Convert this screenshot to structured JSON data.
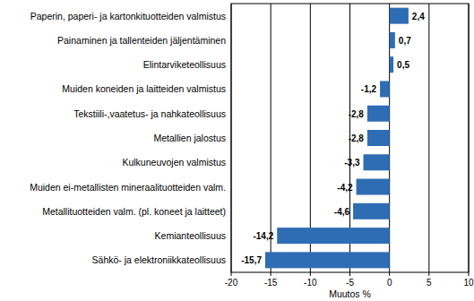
{
  "chart_data": {
    "type": "bar",
    "orientation": "horizontal",
    "categories": [
      "Paperin, paperi- ja kartonkituotteiden valmistus",
      "Painaminen ja tallenteiden jäljentäminen",
      "Elintarviketeollisuus",
      "Muiden koneiden ja laitteiden valmistus",
      "Tekstiili-,vaatetus- ja nahkateollisuus",
      "Metallien jalostus",
      "Kulkuneuvojen valmistus",
      "Muiden ei-metallisten mineraalituotteiden valm.",
      "Metallituotteiden valm. (pl. koneet ja laitteet)",
      "Kemianteollisuus",
      "Sähkö- ja elektroniikkateollisuus"
    ],
    "values": [
      2.4,
      0.7,
      0.5,
      -1.2,
      -2.8,
      -2.8,
      -3.3,
      -4.2,
      -4.6,
      -14.2,
      -15.7
    ],
    "value_labels": [
      "2,4",
      "0,7",
      "0,5",
      "-1,2",
      "-2,8",
      "-2,8",
      "-3,3",
      "-4,2",
      "-4,6",
      "-14,2",
      "-15,7"
    ],
    "color": "#2e6db4",
    "x_label": "Muutos %",
    "xlim": [
      -20,
      10
    ],
    "xticks": [
      -20,
      -15,
      -10,
      -5,
      0,
      5,
      10
    ],
    "grid": true,
    "data_labels": true
  }
}
